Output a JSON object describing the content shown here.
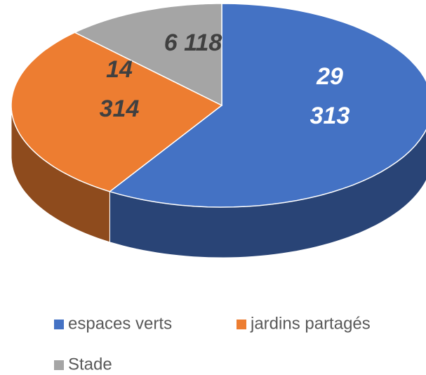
{
  "chart_data": {
    "type": "pie3d",
    "categories": [
      "espaces verts",
      "jardins partagés",
      "Stade"
    ],
    "series": [
      {
        "values": [
          29313,
          14314,
          6118
        ],
        "value_labels": [
          "29 313",
          "14 314",
          "6 118"
        ],
        "colors": [
          "#4472c4",
          "#ed7d31",
          "#a5a5a5"
        ]
      }
    ],
    "legend": "bottom"
  }
}
